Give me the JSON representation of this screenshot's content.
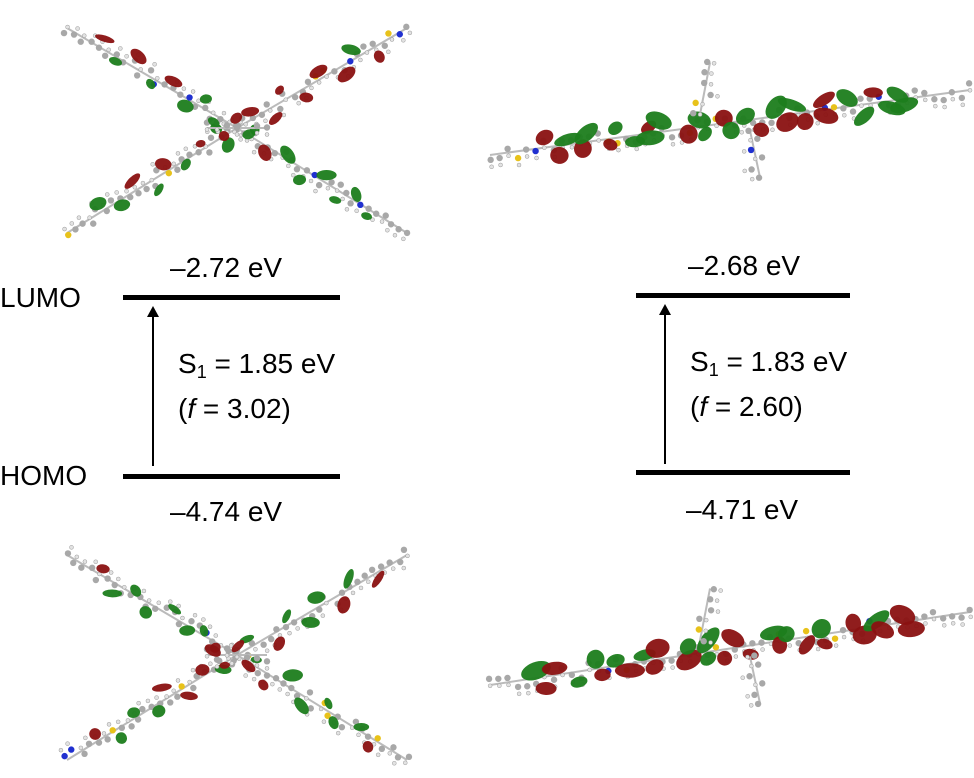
{
  "left": {
    "lumo_label": "LUMO",
    "homo_label": "HOMO",
    "lumo_energy": "–2.72 eV",
    "homo_energy": "–4.74 eV",
    "s1_prefix": "S",
    "s1_sub": "1",
    "s1_value": " = 1.85 eV",
    "f_open": "(",
    "f_symbol": "f",
    "f_value": " = 3.02)"
  },
  "right": {
    "lumo_energy": "–2.68 eV",
    "homo_energy": "–4.71 eV",
    "s1_prefix": "S",
    "s1_sub": "1",
    "s1_value": " = 1.83 eV",
    "f_open": "(",
    "f_symbol": "f",
    "f_value": " = 2.60)"
  },
  "colors": {
    "orbital_positive": "#8a1111",
    "orbital_negative": "#1c7d1c",
    "carbon": "#a8a8a8",
    "hydrogen": "#e2e2e2",
    "sulfur": "#e8c21a",
    "nitrogen": "#2030d0"
  }
}
